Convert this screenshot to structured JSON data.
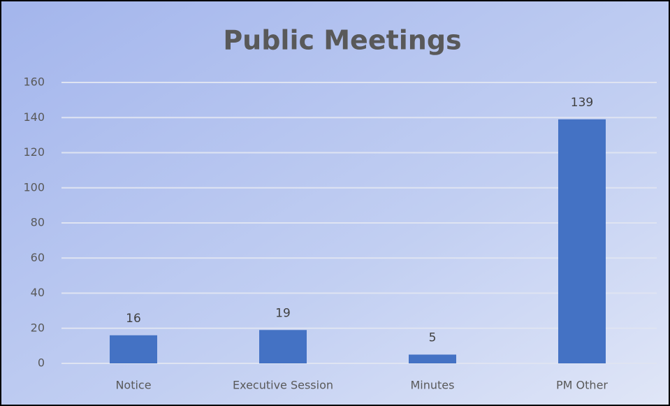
{
  "chart_data": {
    "type": "bar",
    "title": "Public Meetings",
    "categories": [
      "Notice",
      "Executive Session",
      "Minutes",
      "PM Other"
    ],
    "values": [
      16,
      19,
      5,
      139
    ],
    "color": "#4472c4",
    "ylim": [
      0,
      160
    ],
    "yticks": [
      0,
      20,
      40,
      60,
      80,
      100,
      120,
      140,
      160
    ],
    "grid": true
  }
}
